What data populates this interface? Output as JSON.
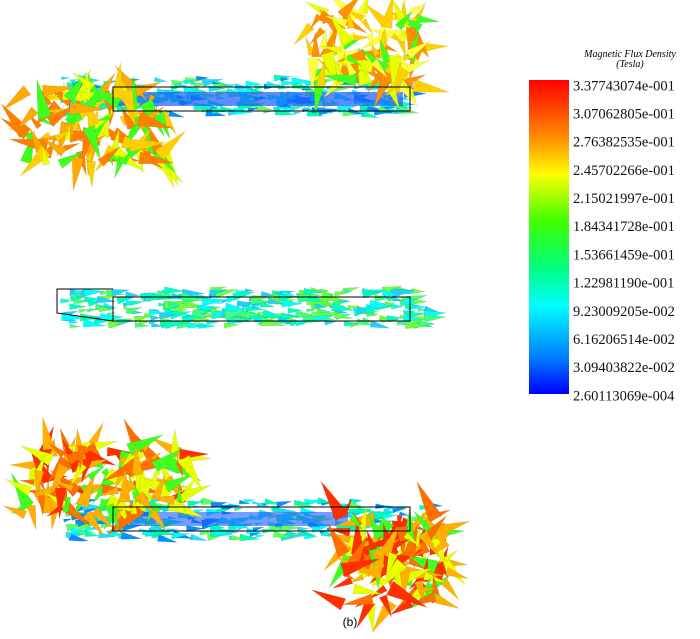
{
  "legend": {
    "title": "Magnetic Flux Density",
    "unit": "(Tesla)",
    "labels": [
      "3.37743074e-001",
      "3.07062805e-001",
      "2.76382535e-001",
      "2.45702266e-001",
      "2.15021997e-001",
      "1.84341728e-001",
      "1.53661459e-001",
      "1.22981190e-001",
      "9.23009205e-002",
      "6.16206514e-002",
      "3.09403822e-002",
      "2.60113069e-004"
    ]
  },
  "caption": "(b)"
}
